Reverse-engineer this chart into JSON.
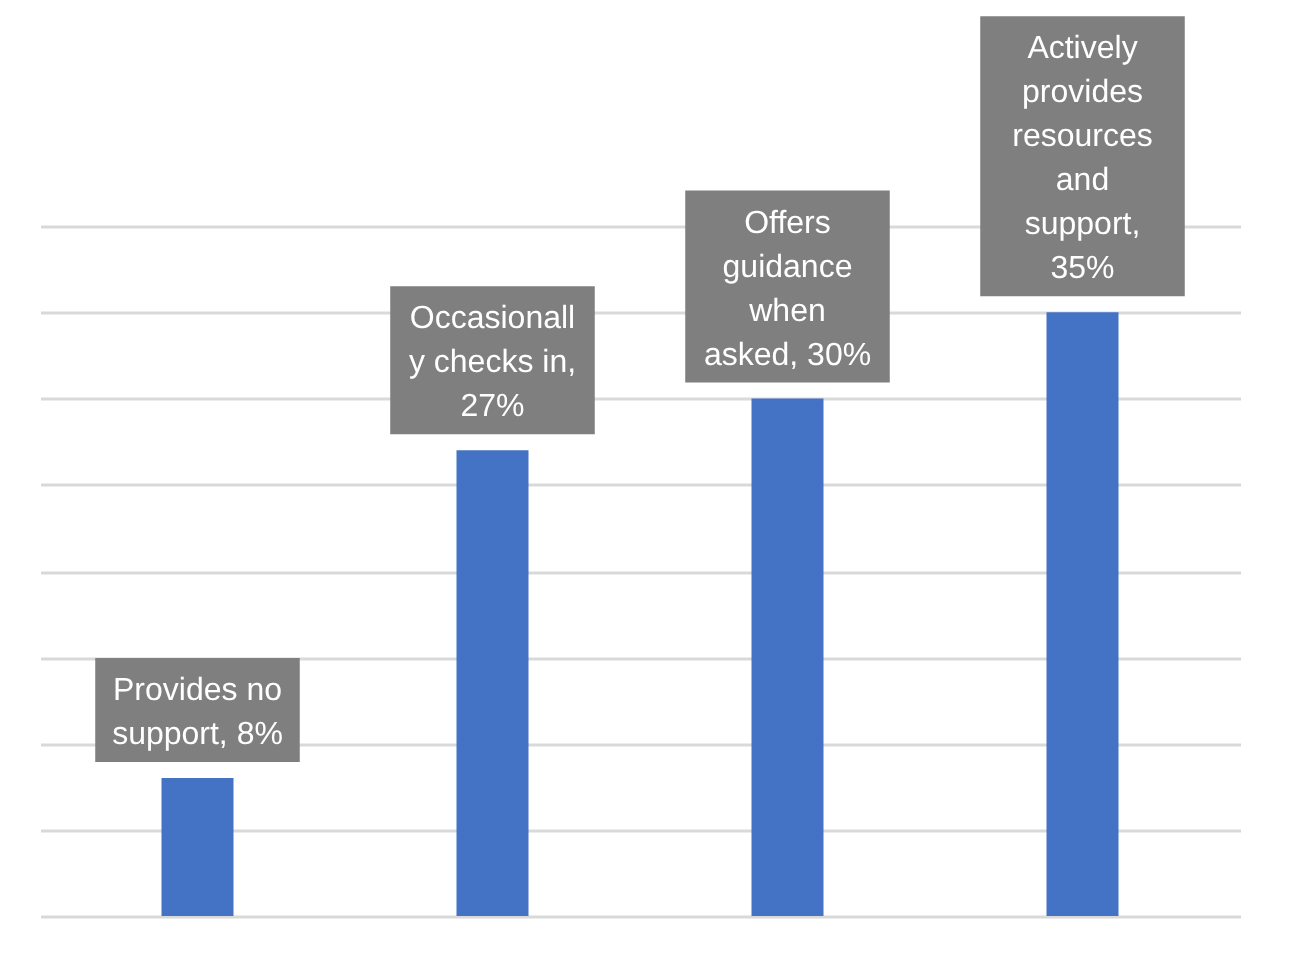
{
  "chart_data": {
    "type": "bar",
    "categories": [
      null,
      null,
      null,
      null
    ],
    "values": [
      8,
      27,
      30,
      35
    ],
    "color": "#4472c4",
    "value_labels": [
      "Provides no\nsupport, 8%",
      "Occasionall\ny checks in,\n27%",
      "Offers\nguidance\nwhen\nasked, 30%",
      "Actively\nprovides\nresources\nand\nsupport,\n35%"
    ],
    "ylim": [
      0,
      40
    ],
    "yticks": [
      {
        "value": 0,
        "label": null
      },
      {
        "value": 5,
        "label": null
      },
      {
        "value": 10,
        "label": null
      },
      {
        "value": 15,
        "label": null
      },
      {
        "value": 20,
        "label": null
      },
      {
        "value": 25,
        "label": null
      },
      {
        "value": 30,
        "label": null
      },
      {
        "value": 35,
        "label": null
      },
      {
        "value": 40,
        "label": null
      }
    ],
    "grid": "y",
    "tick_labels": false,
    "legend": false
  }
}
